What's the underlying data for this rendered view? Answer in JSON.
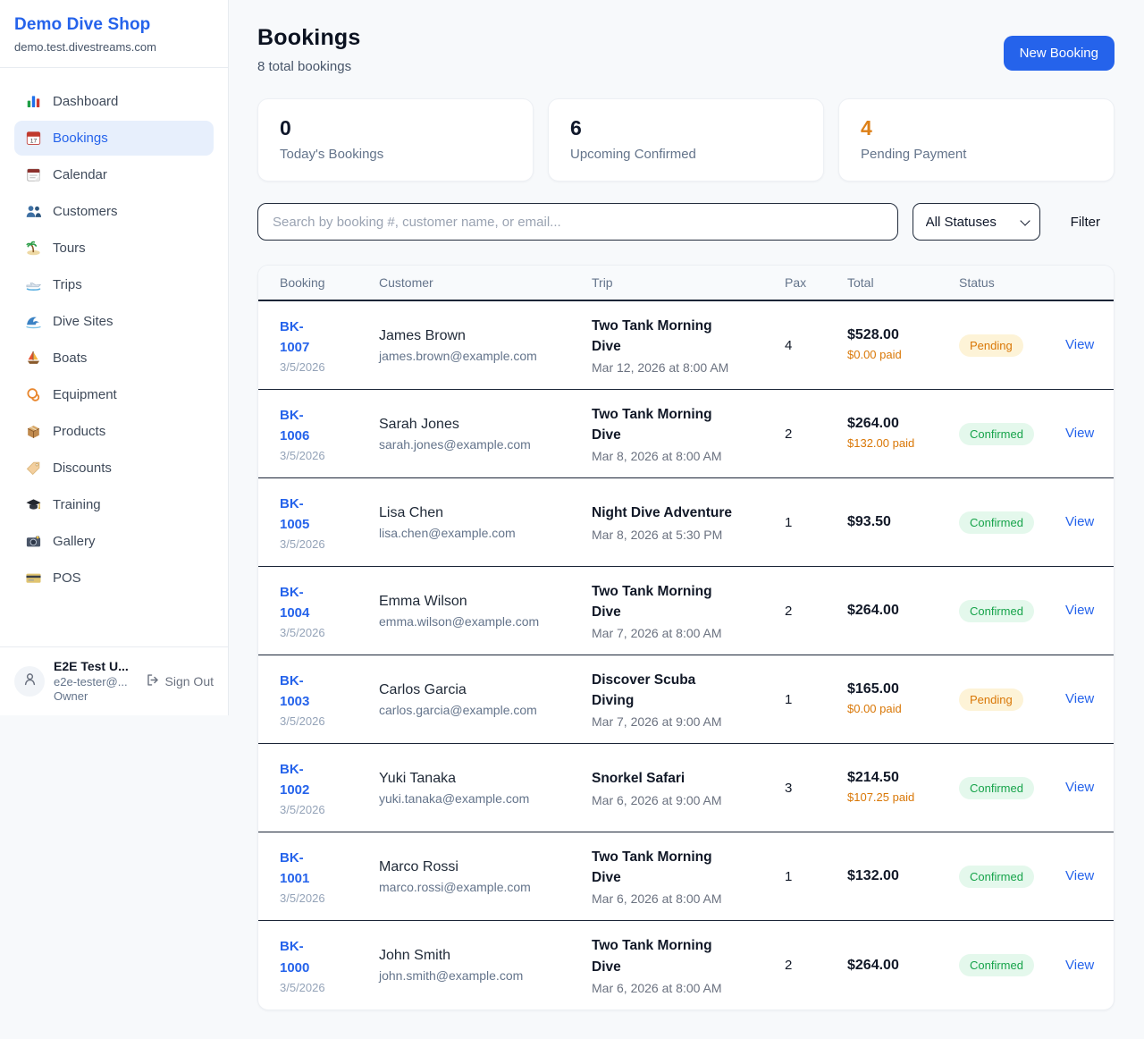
{
  "sidebar": {
    "shop_name": "Demo Dive Shop",
    "shop_domain": "demo.test.divestreams.com",
    "items": [
      {
        "key": "dashboard",
        "label": "Dashboard",
        "icon": "dashboard-icon",
        "active": false
      },
      {
        "key": "bookings",
        "label": "Bookings",
        "icon": "bookings-calendar-icon",
        "active": true
      },
      {
        "key": "calendar",
        "label": "Calendar",
        "icon": "calendar-icon",
        "active": false
      },
      {
        "key": "customers",
        "label": "Customers",
        "icon": "customers-icon",
        "active": false
      },
      {
        "key": "tours",
        "label": "Tours",
        "icon": "tours-island-icon",
        "active": false
      },
      {
        "key": "trips",
        "label": "Trips",
        "icon": "trips-boat-icon",
        "active": false
      },
      {
        "key": "dive-sites",
        "label": "Dive Sites",
        "icon": "wave-icon",
        "active": false
      },
      {
        "key": "boats",
        "label": "Boats",
        "icon": "sailboat-icon",
        "active": false
      },
      {
        "key": "equipment",
        "label": "Equipment",
        "icon": "dive-mask-icon",
        "active": false
      },
      {
        "key": "products",
        "label": "Products",
        "icon": "package-icon",
        "active": false
      },
      {
        "key": "discounts",
        "label": "Discounts",
        "icon": "tag-icon",
        "active": false
      },
      {
        "key": "training",
        "label": "Training",
        "icon": "graduation-cap-icon",
        "active": false
      },
      {
        "key": "gallery",
        "label": "Gallery",
        "icon": "camera-icon",
        "active": false
      },
      {
        "key": "pos",
        "label": "POS",
        "icon": "credit-card-icon",
        "active": false
      }
    ],
    "user": {
      "name": "E2E Test U...",
      "email": "e2e-tester@...",
      "role": "Owner",
      "sign_out_label": "Sign Out"
    }
  },
  "header": {
    "title": "Bookings",
    "subtitle": "8 total bookings",
    "new_booking_label": "New Booking"
  },
  "stats": [
    {
      "key": "today",
      "value": "0",
      "label": "Today's Bookings",
      "accent": false
    },
    {
      "key": "upcoming",
      "value": "6",
      "label": "Upcoming Confirmed",
      "accent": false
    },
    {
      "key": "pending",
      "value": "4",
      "label": "Pending Payment",
      "accent": true
    }
  ],
  "filters": {
    "search_placeholder": "Search by booking #, customer name, or email...",
    "status_selected": "All Statuses",
    "filter_label": "Filter"
  },
  "table": {
    "columns": [
      "Booking",
      "Customer",
      "Trip",
      "Pax",
      "Total",
      "Status"
    ],
    "rows": [
      {
        "id": "BK-1007",
        "date": "3/5/2026",
        "customer": "James Brown",
        "email": "james.brown@example.com",
        "trip": "Two Tank Morning Dive",
        "trip_time": "Mar 12, 2026 at 8:00 AM",
        "pax": "4",
        "total": "$528.00",
        "paid": "$0.00 paid",
        "status": "Pending",
        "action": "View"
      },
      {
        "id": "BK-1006",
        "date": "3/5/2026",
        "customer": "Sarah Jones",
        "email": "sarah.jones@example.com",
        "trip": "Two Tank Morning Dive",
        "trip_time": "Mar 8, 2026 at 8:00 AM",
        "pax": "2",
        "total": "$264.00",
        "paid": "$132.00 paid",
        "status": "Confirmed",
        "action": "View"
      },
      {
        "id": "BK-1005",
        "date": "3/5/2026",
        "customer": "Lisa Chen",
        "email": "lisa.chen@example.com",
        "trip": "Night Dive Adventure",
        "trip_time": "Mar 8, 2026 at 5:30 PM",
        "pax": "1",
        "total": "$93.50",
        "paid": "",
        "status": "Confirmed",
        "action": "View"
      },
      {
        "id": "BK-1004",
        "date": "3/5/2026",
        "customer": "Emma Wilson",
        "email": "emma.wilson@example.com",
        "trip": "Two Tank Morning Dive",
        "trip_time": "Mar 7, 2026 at 8:00 AM",
        "pax": "2",
        "total": "$264.00",
        "paid": "",
        "status": "Confirmed",
        "action": "View"
      },
      {
        "id": "BK-1003",
        "date": "3/5/2026",
        "customer": "Carlos Garcia",
        "email": "carlos.garcia@example.com",
        "trip": "Discover Scuba Diving",
        "trip_time": "Mar 7, 2026 at 9:00 AM",
        "pax": "1",
        "total": "$165.00",
        "paid": "$0.00 paid",
        "status": "Pending",
        "action": "View"
      },
      {
        "id": "BK-1002",
        "date": "3/5/2026",
        "customer": "Yuki Tanaka",
        "email": "yuki.tanaka@example.com",
        "trip": "Snorkel Safari",
        "trip_time": "Mar 6, 2026 at 9:00 AM",
        "pax": "3",
        "total": "$214.50",
        "paid": "$107.25 paid",
        "status": "Confirmed",
        "action": "View"
      },
      {
        "id": "BK-1001",
        "date": "3/5/2026",
        "customer": "Marco Rossi",
        "email": "marco.rossi@example.com",
        "trip": "Two Tank Morning Dive",
        "trip_time": "Mar 6, 2026 at 8:00 AM",
        "pax": "1",
        "total": "$132.00",
        "paid": "",
        "status": "Confirmed",
        "action": "View"
      },
      {
        "id": "BK-1000",
        "date": "3/5/2026",
        "customer": "John Smith",
        "email": "john.smith@example.com",
        "trip": "Two Tank Morning Dive",
        "trip_time": "Mar 6, 2026 at 8:00 AM",
        "pax": "2",
        "total": "$264.00",
        "paid": "",
        "status": "Confirmed",
        "action": "View"
      }
    ]
  },
  "colors": {
    "accent_blue": "#2563eb",
    "pending_orange": "#d97706",
    "confirmed_green": "#16a34a",
    "pending_badge_bg": "#fdf3d7",
    "confirmed_badge_bg": "#e4f8ec",
    "row_divider_dark": "#1b2537",
    "page_background": "#f7f9fb"
  }
}
